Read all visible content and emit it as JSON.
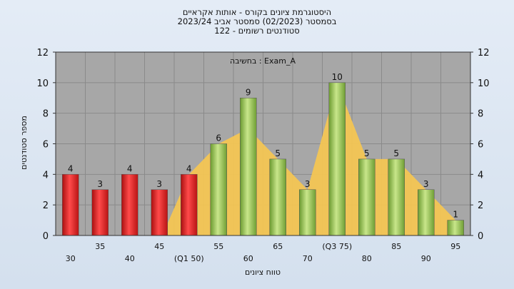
{
  "chart_data": {
    "type": "bar",
    "title_lines": [
      "היסטוגרמת ציונים בקורס - אותות אקראיים",
      "בסמסטר  (02/2023)  סמסטר אביב 2023/24",
      "סטודנטים רשומים - 122"
    ],
    "annotation": "בחשיבה : Exam_A",
    "xlabel": "טווח ציונים",
    "ylabel": "מספר סטודנטים",
    "categories": [
      "30",
      "35",
      "40",
      "45",
      "(Q1 50)",
      "55",
      "60",
      "65",
      "70",
      "(Q3 75)",
      "80",
      "85",
      "90",
      "95"
    ],
    "values": [
      4,
      3,
      4,
      3,
      4,
      6,
      9,
      5,
      3,
      10,
      5,
      5,
      3,
      1
    ],
    "bar_colors": [
      "red",
      "red",
      "red",
      "red",
      "red",
      "green",
      "green",
      "green",
      "green",
      "green",
      "green",
      "green",
      "green",
      "green"
    ],
    "ylim": [
      0,
      12
    ],
    "yticks": [
      0,
      2,
      4,
      6,
      8,
      10,
      12
    ],
    "grid": true,
    "colors": {
      "red": "#e02020",
      "green": "#8cc04a",
      "area": "#f8c850",
      "plot_bg": "#a7a7a7"
    }
  }
}
